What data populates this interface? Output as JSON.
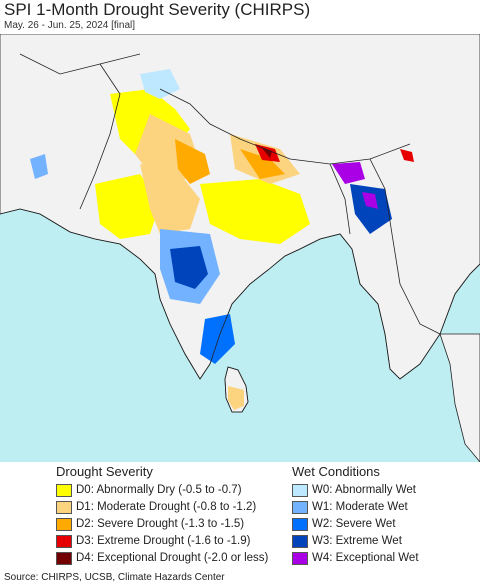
{
  "title": "SPI 1-Month Drought Severity (CHIRPS)",
  "subtitle": "May. 26 - Jun. 25, 2024 [final]",
  "map": {
    "ocean_color": "#bfeef2",
    "land_color": "#f2f2f2",
    "boundary_color": "#222222"
  },
  "legend": {
    "drought": {
      "heading": "Drought Severity",
      "items": [
        {
          "label": "D0: Abnormally Dry (-0.5 to -0.7)",
          "color": "#ffff00"
        },
        {
          "label": "D1: Moderate Drought (-0.8 to -1.2)",
          "color": "#fcd37f"
        },
        {
          "label": "D2: Severe Drought (-1.3 to -1.5)",
          "color": "#ffaa00"
        },
        {
          "label": "D3: Extreme Drought (-1.6 to -1.9)",
          "color": "#e60000"
        },
        {
          "label": "D4: Exceptional Drought (-2.0 or less)",
          "color": "#730000"
        }
      ]
    },
    "wet": {
      "heading": "Wet Conditions",
      "items": [
        {
          "label": "W0: Abnormally Wet",
          "color": "#bee8ff"
        },
        {
          "label": "W1: Moderate Wet",
          "color": "#73b2ff"
        },
        {
          "label": "W2: Severe Wet",
          "color": "#0070ff"
        },
        {
          "label": "W3: Extreme Wet",
          "color": "#0044bb"
        },
        {
          "label": "W4: Exceptional Wet",
          "color": "#a900e6"
        }
      ]
    }
  },
  "source": "Source: CHIRPS, UCSB, Climate Hazards Center"
}
